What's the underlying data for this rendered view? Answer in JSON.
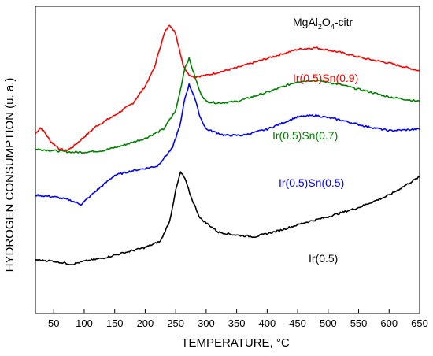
{
  "chart_data": {
    "type": "line",
    "title": "MgAl2O4-citr",
    "title_parts": {
      "base": "MgAl",
      "sub1": "2",
      "mid": "O",
      "sub2": "4",
      "tail": "-citr"
    },
    "xlabel": "TEMPERATURE, °C",
    "ylabel": "HYDROGEN CONSUMPTION (u. a.)",
    "xlim": [
      20,
      650
    ],
    "ylim": [
      0,
      1
    ],
    "x_ticks": [
      50,
      100,
      150,
      200,
      250,
      300,
      350,
      400,
      450,
      500,
      550,
      600,
      650
    ],
    "x_tick_labels": [
      "50",
      "100",
      "150",
      "200",
      "250",
      "300",
      "350",
      "400",
      "450",
      "500",
      "550",
      "600",
      "650"
    ],
    "y_ticks_labeled": false,
    "grid": false,
    "legend": "inline labels",
    "series": [
      {
        "name": "Ir(0.5)Sn(0.9)",
        "color": "#ff0000",
        "x": [
          20,
          28,
          35,
          45,
          60,
          70,
          80,
          100,
          120,
          150,
          180,
          200,
          215,
          225,
          232,
          240,
          248,
          255,
          262,
          270,
          280,
          300,
          320,
          350,
          400,
          450,
          480,
          520,
          560,
          600,
          650
        ],
        "y": [
          0.585,
          0.605,
          0.59,
          0.56,
          0.535,
          0.53,
          0.54,
          0.575,
          0.61,
          0.645,
          0.685,
          0.74,
          0.8,
          0.87,
          0.915,
          0.94,
          0.92,
          0.87,
          0.81,
          0.78,
          0.77,
          0.775,
          0.785,
          0.8,
          0.83,
          0.86,
          0.865,
          0.85,
          0.83,
          0.815,
          0.79
        ]
      },
      {
        "name": "Ir(0.5)Sn(0.7)",
        "color": "#008000",
        "x": [
          20,
          50,
          80,
          100,
          130,
          160,
          200,
          230,
          250,
          258,
          265,
          272,
          280,
          290,
          300,
          320,
          350,
          400,
          450,
          480,
          520,
          560,
          600,
          650
        ],
        "y": [
          0.535,
          0.53,
          0.525,
          0.525,
          0.53,
          0.545,
          0.57,
          0.6,
          0.66,
          0.73,
          0.8,
          0.83,
          0.78,
          0.72,
          0.69,
          0.685,
          0.69,
          0.72,
          0.755,
          0.76,
          0.745,
          0.725,
          0.705,
          0.69
        ]
      },
      {
        "name": "Ir(0.5)Sn(0.5)",
        "color": "#0000ff",
        "x": [
          20,
          50,
          75,
          95,
          120,
          150,
          180,
          220,
          245,
          258,
          265,
          272,
          280,
          290,
          300,
          330,
          360,
          400,
          450,
          480,
          520,
          560,
          600,
          650
        ],
        "y": [
          0.385,
          0.38,
          0.37,
          0.355,
          0.4,
          0.45,
          0.465,
          0.48,
          0.54,
          0.62,
          0.7,
          0.745,
          0.71,
          0.64,
          0.6,
          0.58,
          0.58,
          0.6,
          0.64,
          0.645,
          0.63,
          0.61,
          0.595,
          0.6
        ]
      },
      {
        "name": "Ir(0.5)",
        "color": "#000000",
        "x": [
          20,
          50,
          80,
          100,
          130,
          160,
          200,
          225,
          240,
          250,
          258,
          265,
          275,
          290,
          320,
          350,
          380,
          420,
          460,
          500,
          550,
          600,
          650
        ],
        "y": [
          0.175,
          0.17,
          0.16,
          0.17,
          0.18,
          0.195,
          0.215,
          0.235,
          0.3,
          0.4,
          0.46,
          0.44,
          0.38,
          0.31,
          0.265,
          0.255,
          0.25,
          0.27,
          0.295,
          0.315,
          0.345,
          0.385,
          0.445
        ]
      }
    ]
  }
}
